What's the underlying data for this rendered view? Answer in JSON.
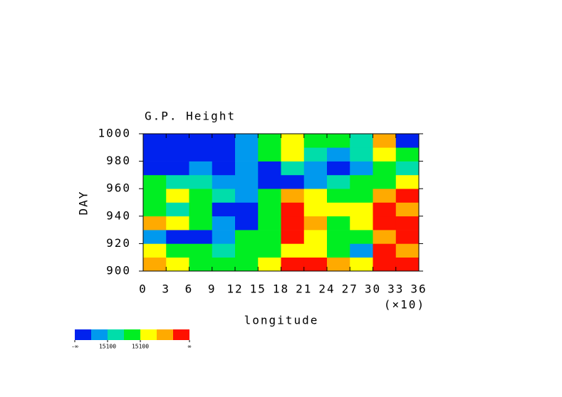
{
  "chart_data": {
    "type": "heatmap",
    "title": "G.P. Height",
    "x_label": "longitude",
    "x_multiplier": "(×10)",
    "y_label": "DAY",
    "xbins": [
      0,
      3,
      6,
      9,
      12,
      15,
      18,
      21,
      24,
      27,
      30,
      33,
      36
    ],
    "ybins": [
      900,
      910,
      920,
      930,
      940,
      950,
      960,
      970,
      980,
      990,
      1000
    ],
    "xlim": [
      0,
      36
    ],
    "ylim": [
      900,
      1000
    ],
    "xticks": [
      0,
      3,
      6,
      9,
      12,
      15,
      18,
      21,
      24,
      27,
      30,
      33,
      36
    ],
    "yticks": [
      900,
      920,
      940,
      960,
      980,
      1000
    ],
    "values": [
      [
        5,
        4,
        3,
        3,
        3,
        4,
        6,
        6,
        5,
        4,
        6,
        6
      ],
      [
        4,
        3,
        3,
        2,
        3,
        3,
        4,
        4,
        3,
        1,
        6,
        5
      ],
      [
        1,
        0,
        0,
        1,
        3,
        3,
        6,
        4,
        3,
        3,
        5,
        6
      ],
      [
        5,
        4,
        3,
        1,
        0,
        3,
        6,
        5,
        3,
        4,
        6,
        6
      ],
      [
        3,
        2,
        3,
        0,
        0,
        3,
        6,
        4,
        4,
        4,
        6,
        5
      ],
      [
        3,
        4,
        3,
        2,
        1,
        3,
        5,
        4,
        3,
        3,
        5,
        6
      ],
      [
        3,
        2,
        2,
        1,
        1,
        0,
        0,
        1,
        2,
        3,
        3,
        4
      ],
      [
        0,
        0,
        1,
        0,
        1,
        0,
        2,
        1,
        0,
        1,
        3,
        2
      ],
      [
        0,
        0,
        0,
        0,
        1,
        3,
        4,
        2,
        1,
        2,
        4,
        3
      ],
      [
        0,
        0,
        0,
        0,
        1,
        3,
        4,
        3,
        3,
        2,
        5,
        0
      ]
    ],
    "colors": [
      "#0022ee",
      "#0099ee",
      "#00ddaa",
      "#00ee22",
      "#ffff00",
      "#ffaa00",
      "#ff1100"
    ],
    "colorbar_labels": [
      "-∞",
      null,
      "15100",
      null,
      "15100",
      null,
      null,
      "∞"
    ]
  }
}
